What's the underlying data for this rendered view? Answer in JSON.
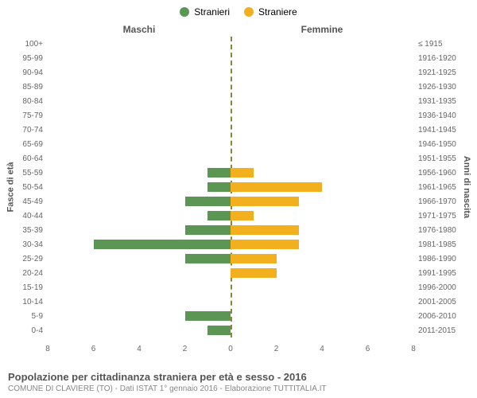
{
  "legend": {
    "male": {
      "label": "Stranieri",
      "color": "#5b9654"
    },
    "female": {
      "label": "Straniere",
      "color": "#f2b01e"
    }
  },
  "headers": {
    "left": "Maschi",
    "right": "Femmine"
  },
  "axis": {
    "left_title": "Fasce di età",
    "right_title": "Anni di nascita",
    "xmax": 8,
    "xticks": [
      8,
      6,
      4,
      2,
      0,
      2,
      4,
      6,
      8
    ]
  },
  "rows": [
    {
      "age": "100+",
      "birth": "≤ 1915",
      "m": 0,
      "f": 0
    },
    {
      "age": "95-99",
      "birth": "1916-1920",
      "m": 0,
      "f": 0
    },
    {
      "age": "90-94",
      "birth": "1921-1925",
      "m": 0,
      "f": 0
    },
    {
      "age": "85-89",
      "birth": "1926-1930",
      "m": 0,
      "f": 0
    },
    {
      "age": "80-84",
      "birth": "1931-1935",
      "m": 0,
      "f": 0
    },
    {
      "age": "75-79",
      "birth": "1936-1940",
      "m": 0,
      "f": 0
    },
    {
      "age": "70-74",
      "birth": "1941-1945",
      "m": 0,
      "f": 0
    },
    {
      "age": "65-69",
      "birth": "1946-1950",
      "m": 0,
      "f": 0
    },
    {
      "age": "60-64",
      "birth": "1951-1955",
      "m": 0,
      "f": 0
    },
    {
      "age": "55-59",
      "birth": "1956-1960",
      "m": 1,
      "f": 1
    },
    {
      "age": "50-54",
      "birth": "1961-1965",
      "m": 1,
      "f": 4
    },
    {
      "age": "45-49",
      "birth": "1966-1970",
      "m": 2,
      "f": 3
    },
    {
      "age": "40-44",
      "birth": "1971-1975",
      "m": 1,
      "f": 1
    },
    {
      "age": "35-39",
      "birth": "1976-1980",
      "m": 2,
      "f": 3
    },
    {
      "age": "30-34",
      "birth": "1981-1985",
      "m": 6,
      "f": 3
    },
    {
      "age": "25-29",
      "birth": "1986-1990",
      "m": 2,
      "f": 2
    },
    {
      "age": "20-24",
      "birth": "1991-1995",
      "m": 0,
      "f": 2
    },
    {
      "age": "15-19",
      "birth": "1996-2000",
      "m": 0,
      "f": 0
    },
    {
      "age": "10-14",
      "birth": "2001-2005",
      "m": 0,
      "f": 0
    },
    {
      "age": "5-9",
      "birth": "2006-2010",
      "m": 2,
      "f": 0
    },
    {
      "age": "0-4",
      "birth": "2011-2015",
      "m": 1,
      "f": 0
    }
  ],
  "style": {
    "male_color": "#5b9654",
    "female_color": "#f2b01e",
    "grid_color": "#eeeeee",
    "zero_line_color": "#888833",
    "text_color": "#666666"
  },
  "footer": {
    "title": "Popolazione per cittadinanza straniera per età e sesso - 2016",
    "subtitle": "COMUNE DI CLAVIERE (TO) - Dati ISTAT 1° gennaio 2016 - Elaborazione TUTTITALIA.IT"
  }
}
